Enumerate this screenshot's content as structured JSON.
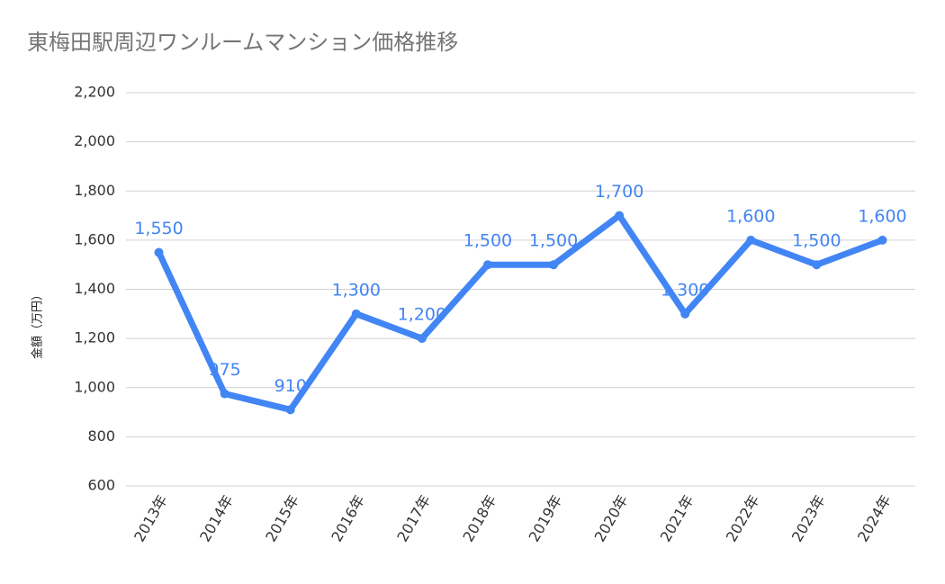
{
  "chart_data": {
    "type": "line",
    "title": "東梅田駅周辺ワンルームマンション価格推移",
    "y_label": "金額（万円）",
    "categories": [
      "2013年",
      "2014年",
      "2015年",
      "2016年",
      "2017年",
      "2018年",
      "2019年",
      "2020年",
      "2021年",
      "2022年",
      "2023年",
      "2024年"
    ],
    "series": [
      {
        "name": "金額",
        "color": "#4285f4",
        "values": [
          1550,
          975,
          910,
          1300,
          1200,
          1500,
          1500,
          1700,
          1300,
          1600,
          1500,
          1600
        ],
        "value_labels": [
          "1,550",
          "975",
          "910",
          "1,300",
          "1,200",
          "1,500",
          "1,500",
          "1,700",
          "1,300",
          "1,600",
          "1,500",
          "1,600"
        ]
      }
    ],
    "ylim": [
      600,
      2200
    ],
    "yticks": [
      600,
      800,
      {
        "value": 1000,
        "label": "1,000"
      },
      {
        "value": 1200,
        "label": "1,200"
      },
      {
        "value": 1400,
        "label": "1,400"
      },
      {
        "value": 1600,
        "label": "1,600"
      },
      {
        "value": 1800,
        "label": "1,800"
      },
      {
        "value": 2000,
        "label": "2,000"
      },
      {
        "value": 2200,
        "label": "2,200"
      }
    ],
    "grid": true
  }
}
